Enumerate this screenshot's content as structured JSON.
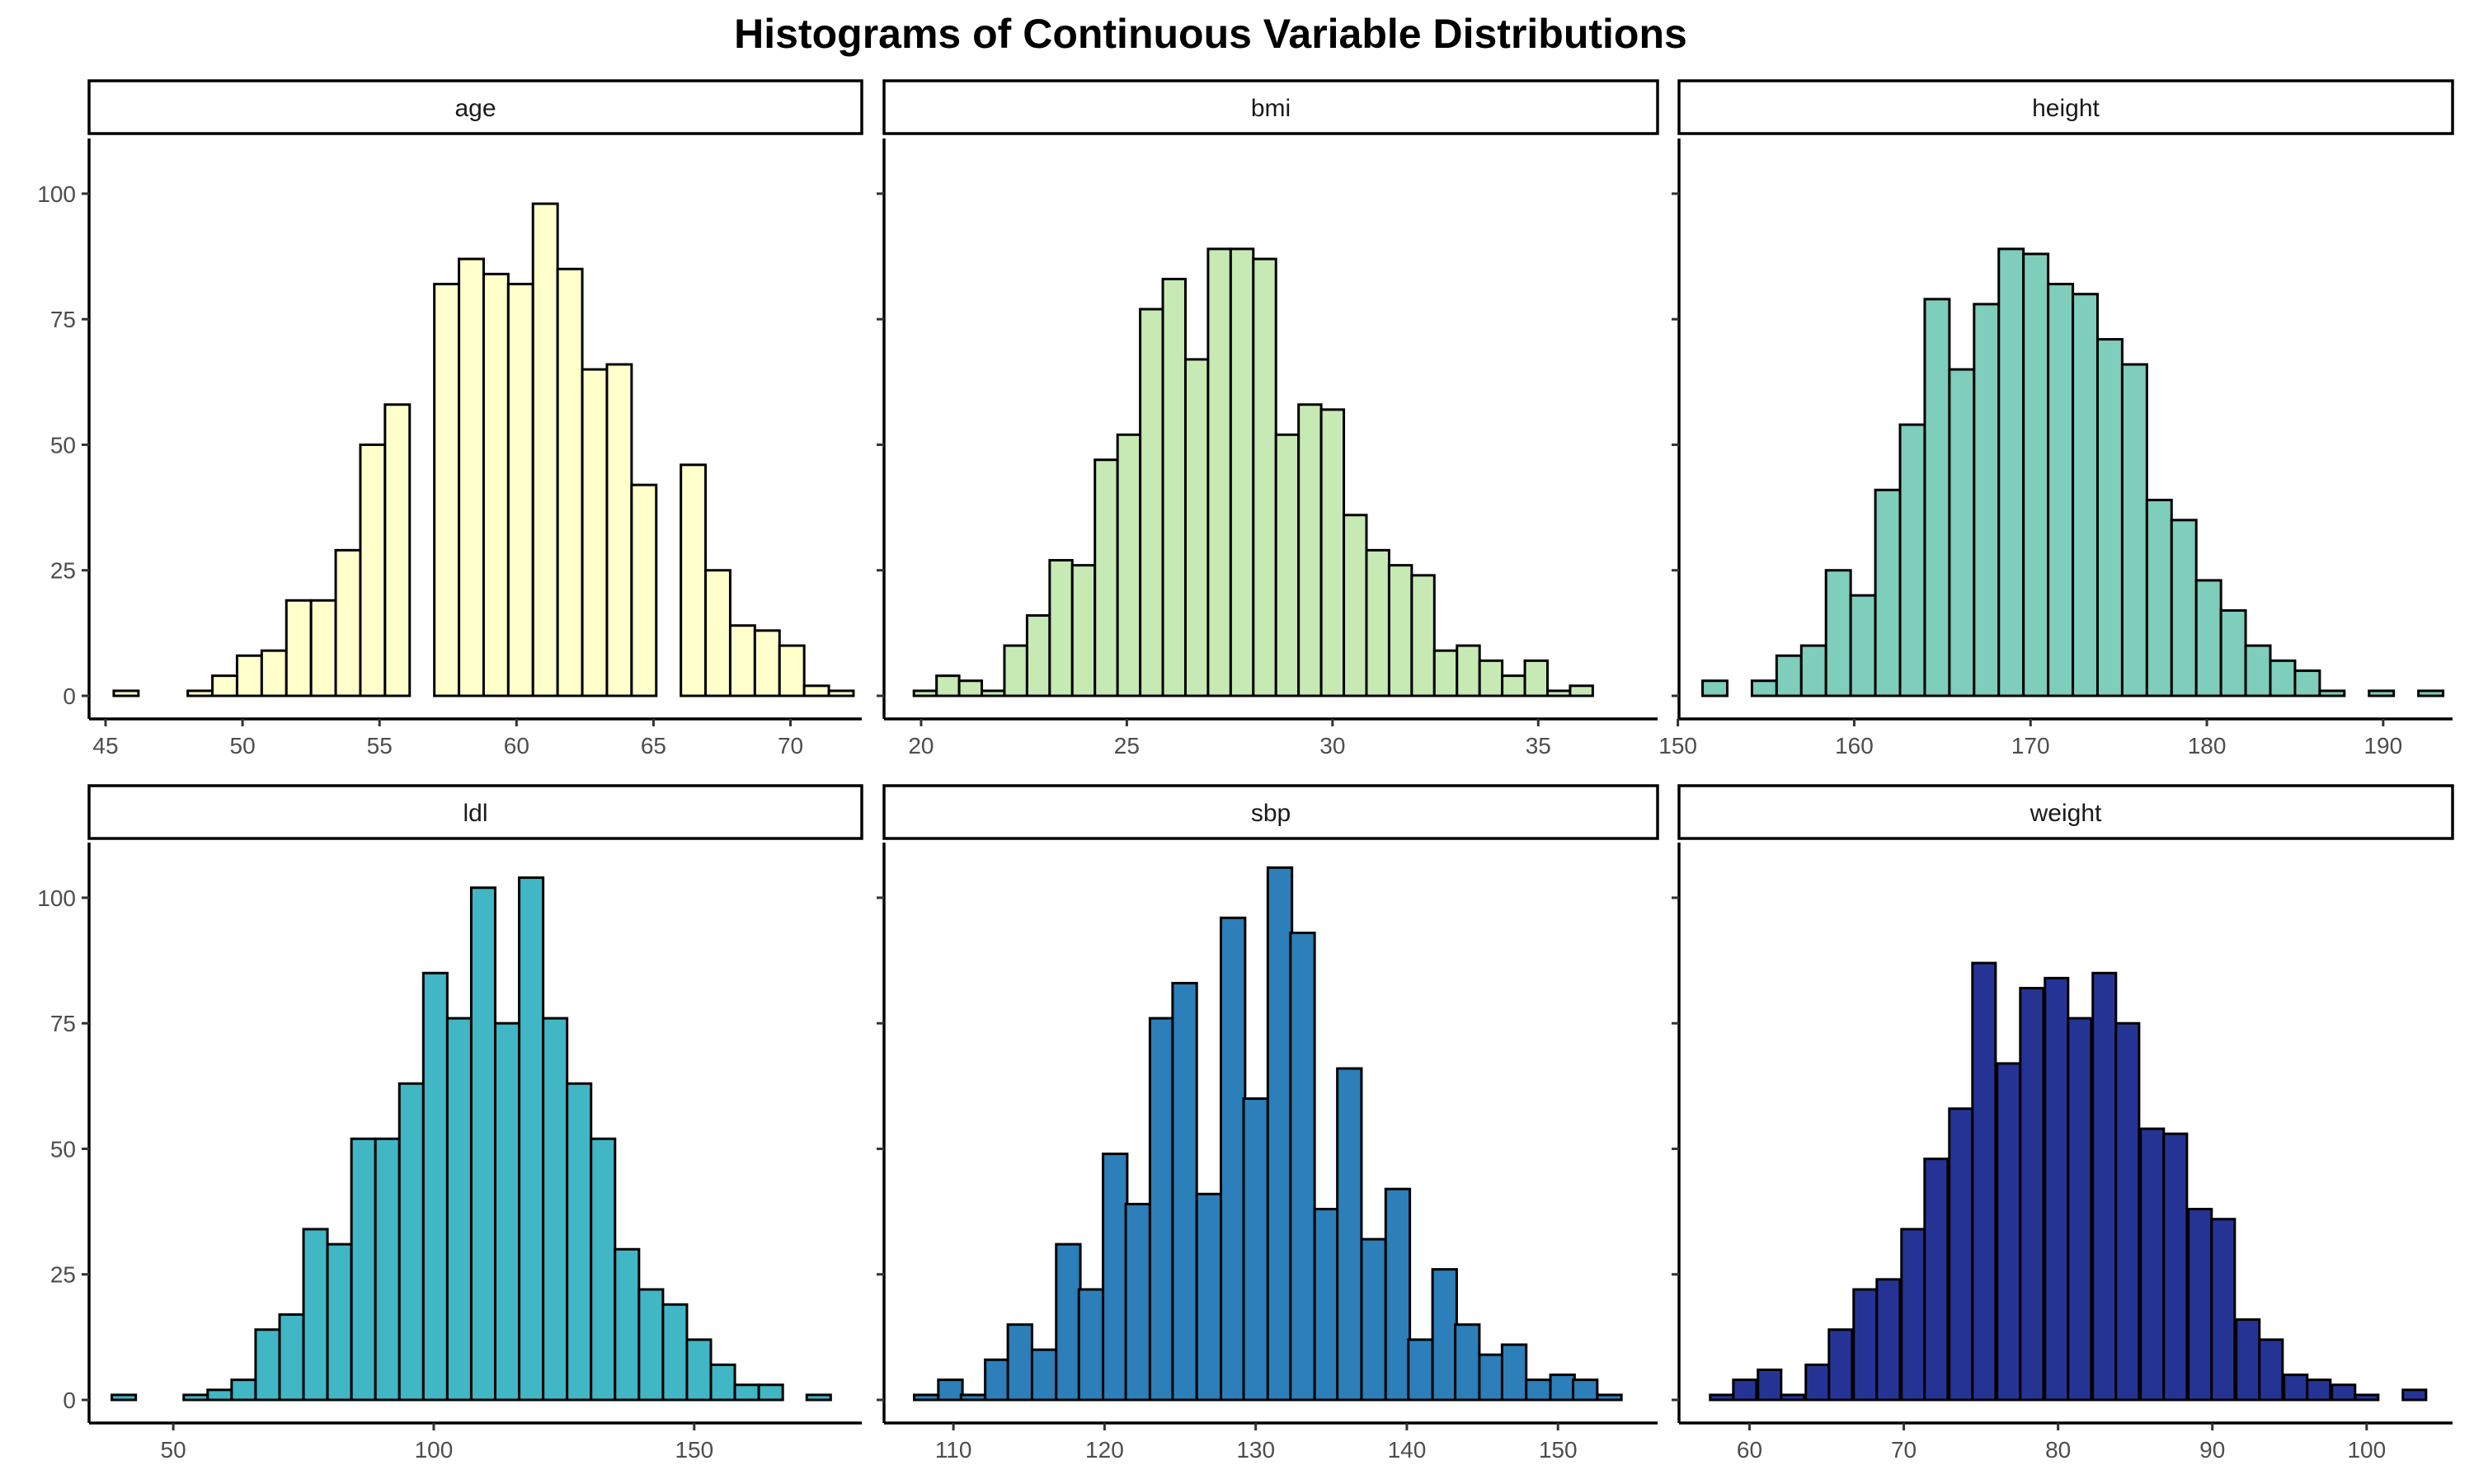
{
  "title": "Histograms of Continuous Variable Distributions",
  "chart_data": [
    {
      "type": "bar",
      "panel": "age",
      "fill": "#ffffcc",
      "x_range": [
        45,
        72
      ],
      "x_ticks": [
        45,
        50,
        55,
        60,
        65,
        70
      ],
      "y_range": [
        0,
        110
      ],
      "y_ticks": [
        0,
        25,
        50,
        75,
        100
      ],
      "bins": [
        {
          "x": 45.75,
          "count": 1
        },
        {
          "x": 46.65,
          "count": 0
        },
        {
          "x": 47.55,
          "count": 0
        },
        {
          "x": 48.45,
          "count": 1
        },
        {
          "x": 49.35,
          "count": 4
        },
        {
          "x": 50.25,
          "count": 8
        },
        {
          "x": 51.15,
          "count": 9
        },
        {
          "x": 52.05,
          "count": 19
        },
        {
          "x": 52.95,
          "count": 19
        },
        {
          "x": 53.85,
          "count": 29
        },
        {
          "x": 54.75,
          "count": 50
        },
        {
          "x": 55.65,
          "count": 58
        },
        {
          "x": 56.55,
          "count": 0
        },
        {
          "x": 57.45,
          "count": 82
        },
        {
          "x": 58.35,
          "count": 87
        },
        {
          "x": 59.25,
          "count": 84
        },
        {
          "x": 60.15,
          "count": 82
        },
        {
          "x": 61.05,
          "count": 98
        },
        {
          "x": 61.95,
          "count": 85
        },
        {
          "x": 62.85,
          "count": 65
        },
        {
          "x": 63.75,
          "count": 66
        },
        {
          "x": 64.65,
          "count": 42
        },
        {
          "x": 65.55,
          "count": 0
        },
        {
          "x": 66.45,
          "count": 46
        },
        {
          "x": 67.35,
          "count": 25
        },
        {
          "x": 68.25,
          "count": 14
        },
        {
          "x": 69.15,
          "count": 13
        },
        {
          "x": 70.05,
          "count": 10
        },
        {
          "x": 70.95,
          "count": 2
        },
        {
          "x": 71.85,
          "count": 1
        }
      ]
    },
    {
      "type": "bar",
      "panel": "bmi",
      "fill": "#c7e9b4",
      "x_range": [
        19.5,
        37.5
      ],
      "x_ticks": [
        20,
        25,
        30,
        35
      ],
      "y_range": [
        0,
        110
      ],
      "y_ticks": [
        0,
        25,
        50,
        75,
        100
      ],
      "bins": [
        {
          "x": 20.1,
          "count": 1
        },
        {
          "x": 20.65,
          "count": 4
        },
        {
          "x": 21.2,
          "count": 3
        },
        {
          "x": 21.75,
          "count": 1
        },
        {
          "x": 22.3,
          "count": 10
        },
        {
          "x": 22.85,
          "count": 16
        },
        {
          "x": 23.4,
          "count": 27
        },
        {
          "x": 23.95,
          "count": 26
        },
        {
          "x": 24.5,
          "count": 47
        },
        {
          "x": 25.05,
          "count": 52
        },
        {
          "x": 25.6,
          "count": 77
        },
        {
          "x": 26.15,
          "count": 83
        },
        {
          "x": 26.7,
          "count": 67
        },
        {
          "x": 27.25,
          "count": 89
        },
        {
          "x": 27.8,
          "count": 89
        },
        {
          "x": 28.35,
          "count": 87
        },
        {
          "x": 28.9,
          "count": 52
        },
        {
          "x": 29.45,
          "count": 58
        },
        {
          "x": 30.0,
          "count": 57
        },
        {
          "x": 30.55,
          "count": 36
        },
        {
          "x": 31.1,
          "count": 29
        },
        {
          "x": 31.65,
          "count": 26
        },
        {
          "x": 32.2,
          "count": 24
        },
        {
          "x": 32.75,
          "count": 9
        },
        {
          "x": 33.3,
          "count": 10
        },
        {
          "x": 33.85,
          "count": 7
        },
        {
          "x": 34.4,
          "count": 4
        },
        {
          "x": 34.95,
          "count": 7
        },
        {
          "x": 35.5,
          "count": 1
        },
        {
          "x": 36.05,
          "count": 2
        }
      ]
    },
    {
      "type": "bar",
      "panel": "height",
      "fill": "#7fcdbb",
      "x_range": [
        151,
        193
      ],
      "x_ticks": [
        150,
        160,
        170,
        180,
        190
      ],
      "y_range": [
        0,
        110
      ],
      "y_ticks": [
        0,
        25,
        50,
        75,
        100
      ],
      "bins": [
        {
          "x": 152.1,
          "count": 3
        },
        {
          "x": 153.5,
          "count": 0
        },
        {
          "x": 154.9,
          "count": 3
        },
        {
          "x": 156.3,
          "count": 8
        },
        {
          "x": 157.7,
          "count": 10
        },
        {
          "x": 159.1,
          "count": 25
        },
        {
          "x": 160.5,
          "count": 20
        },
        {
          "x": 161.9,
          "count": 41
        },
        {
          "x": 163.3,
          "count": 54
        },
        {
          "x": 164.7,
          "count": 79
        },
        {
          "x": 166.1,
          "count": 65
        },
        {
          "x": 167.5,
          "count": 78
        },
        {
          "x": 168.9,
          "count": 89
        },
        {
          "x": 170.3,
          "count": 88
        },
        {
          "x": 171.7,
          "count": 82
        },
        {
          "x": 173.1,
          "count": 80
        },
        {
          "x": 174.5,
          "count": 71
        },
        {
          "x": 175.9,
          "count": 66
        },
        {
          "x": 177.3,
          "count": 39
        },
        {
          "x": 178.7,
          "count": 35
        },
        {
          "x": 180.1,
          "count": 23
        },
        {
          "x": 181.5,
          "count": 17
        },
        {
          "x": 182.9,
          "count": 10
        },
        {
          "x": 184.3,
          "count": 7
        },
        {
          "x": 185.7,
          "count": 5
        },
        {
          "x": 187.1,
          "count": 1
        },
        {
          "x": 188.5,
          "count": 0
        },
        {
          "x": 189.9,
          "count": 1
        },
        {
          "x": 191.3,
          "count": 0
        },
        {
          "x": 192.7,
          "count": 1
        }
      ]
    },
    {
      "type": "bar",
      "panel": "ldl",
      "fill": "#41b6c4",
      "x_range": [
        37,
        179
      ],
      "x_ticks": [
        50,
        100,
        150
      ],
      "y_range": [
        0,
        110
      ],
      "y_ticks": [
        0,
        25,
        50,
        75,
        100
      ],
      "bins": [
        {
          "x": 40.5,
          "count": 1
        },
        {
          "x": 45.1,
          "count": 0
        },
        {
          "x": 49.7,
          "count": 0
        },
        {
          "x": 54.3,
          "count": 1
        },
        {
          "x": 58.9,
          "count": 2
        },
        {
          "x": 63.5,
          "count": 4
        },
        {
          "x": 68.1,
          "count": 14
        },
        {
          "x": 72.7,
          "count": 17
        },
        {
          "x": 77.3,
          "count": 34
        },
        {
          "x": 81.9,
          "count": 31
        },
        {
          "x": 86.5,
          "count": 52
        },
        {
          "x": 91.1,
          "count": 52
        },
        {
          "x": 95.7,
          "count": 63
        },
        {
          "x": 100.3,
          "count": 85
        },
        {
          "x": 104.9,
          "count": 76
        },
        {
          "x": 109.5,
          "count": 102
        },
        {
          "x": 114.1,
          "count": 75
        },
        {
          "x": 118.7,
          "count": 104
        },
        {
          "x": 123.3,
          "count": 76
        },
        {
          "x": 127.9,
          "count": 63
        },
        {
          "x": 132.5,
          "count": 52
        },
        {
          "x": 137.1,
          "count": 30
        },
        {
          "x": 141.7,
          "count": 22
        },
        {
          "x": 146.3,
          "count": 19
        },
        {
          "x": 150.9,
          "count": 12
        },
        {
          "x": 155.5,
          "count": 7
        },
        {
          "x": 160.1,
          "count": 3
        },
        {
          "x": 164.7,
          "count": 3
        },
        {
          "x": 169.3,
          "count": 0
        },
        {
          "x": 173.9,
          "count": 1
        }
      ]
    },
    {
      "type": "bar",
      "panel": "sbp",
      "fill": "#2c7fb8",
      "x_range": [
        106.5,
        155.5
      ],
      "x_ticks": [
        110,
        120,
        130,
        140,
        150
      ],
      "y_range": [
        0,
        110
      ],
      "y_ticks": [
        0,
        25,
        50,
        75,
        100
      ],
      "bins": [
        {
          "x": 108.2,
          "count": 1
        },
        {
          "x": 109.8,
          "count": 4
        },
        {
          "x": 111.3,
          "count": 1
        },
        {
          "x": 112.9,
          "count": 8
        },
        {
          "x": 114.4,
          "count": 15
        },
        {
          "x": 116.0,
          "count": 10
        },
        {
          "x": 117.6,
          "count": 31
        },
        {
          "x": 119.1,
          "count": 22
        },
        {
          "x": 120.7,
          "count": 49
        },
        {
          "x": 122.2,
          "count": 39
        },
        {
          "x": 123.8,
          "count": 76
        },
        {
          "x": 125.3,
          "count": 83
        },
        {
          "x": 126.9,
          "count": 41
        },
        {
          "x": 128.5,
          "count": 96
        },
        {
          "x": 130.0,
          "count": 60
        },
        {
          "x": 131.6,
          "count": 106
        },
        {
          "x": 133.1,
          "count": 93
        },
        {
          "x": 134.7,
          "count": 38
        },
        {
          "x": 136.2,
          "count": 66
        },
        {
          "x": 137.8,
          "count": 32
        },
        {
          "x": 139.4,
          "count": 42
        },
        {
          "x": 140.9,
          "count": 12
        },
        {
          "x": 142.5,
          "count": 26
        },
        {
          "x": 144.0,
          "count": 15
        },
        {
          "x": 145.6,
          "count": 9
        },
        {
          "x": 147.1,
          "count": 11
        },
        {
          "x": 148.7,
          "count": 4
        },
        {
          "x": 150.3,
          "count": 5
        },
        {
          "x": 151.8,
          "count": 4
        },
        {
          "x": 153.4,
          "count": 1
        }
      ]
    },
    {
      "type": "bar",
      "panel": "weight",
      "fill": "#253494",
      "x_range": [
        56.5,
        104.5
      ],
      "x_ticks": [
        60,
        70,
        80,
        90,
        100
      ],
      "y_range": [
        0,
        110
      ],
      "y_ticks": [
        0,
        25,
        50,
        75,
        100
      ],
      "bins": [
        {
          "x": 58.2,
          "count": 1
        },
        {
          "x": 59.7,
          "count": 4
        },
        {
          "x": 61.3,
          "count": 6
        },
        {
          "x": 62.8,
          "count": 1
        },
        {
          "x": 64.4,
          "count": 7
        },
        {
          "x": 65.9,
          "count": 14
        },
        {
          "x": 67.5,
          "count": 22
        },
        {
          "x": 69.0,
          "count": 24
        },
        {
          "x": 70.6,
          "count": 34
        },
        {
          "x": 72.1,
          "count": 48
        },
        {
          "x": 73.7,
          "count": 58
        },
        {
          "x": 75.2,
          "count": 87
        },
        {
          "x": 76.8,
          "count": 67
        },
        {
          "x": 78.3,
          "count": 82
        },
        {
          "x": 79.9,
          "count": 84
        },
        {
          "x": 81.4,
          "count": 76
        },
        {
          "x": 83.0,
          "count": 85
        },
        {
          "x": 84.5,
          "count": 75
        },
        {
          "x": 86.1,
          "count": 54
        },
        {
          "x": 87.6,
          "count": 53
        },
        {
          "x": 89.2,
          "count": 38
        },
        {
          "x": 90.7,
          "count": 36
        },
        {
          "x": 92.3,
          "count": 16
        },
        {
          "x": 93.8,
          "count": 12
        },
        {
          "x": 95.4,
          "count": 5
        },
        {
          "x": 96.9,
          "count": 4
        },
        {
          "x": 98.5,
          "count": 3
        },
        {
          "x": 100.0,
          "count": 1
        },
        {
          "x": 101.6,
          "count": 0
        },
        {
          "x": 103.1,
          "count": 2
        }
      ]
    }
  ]
}
